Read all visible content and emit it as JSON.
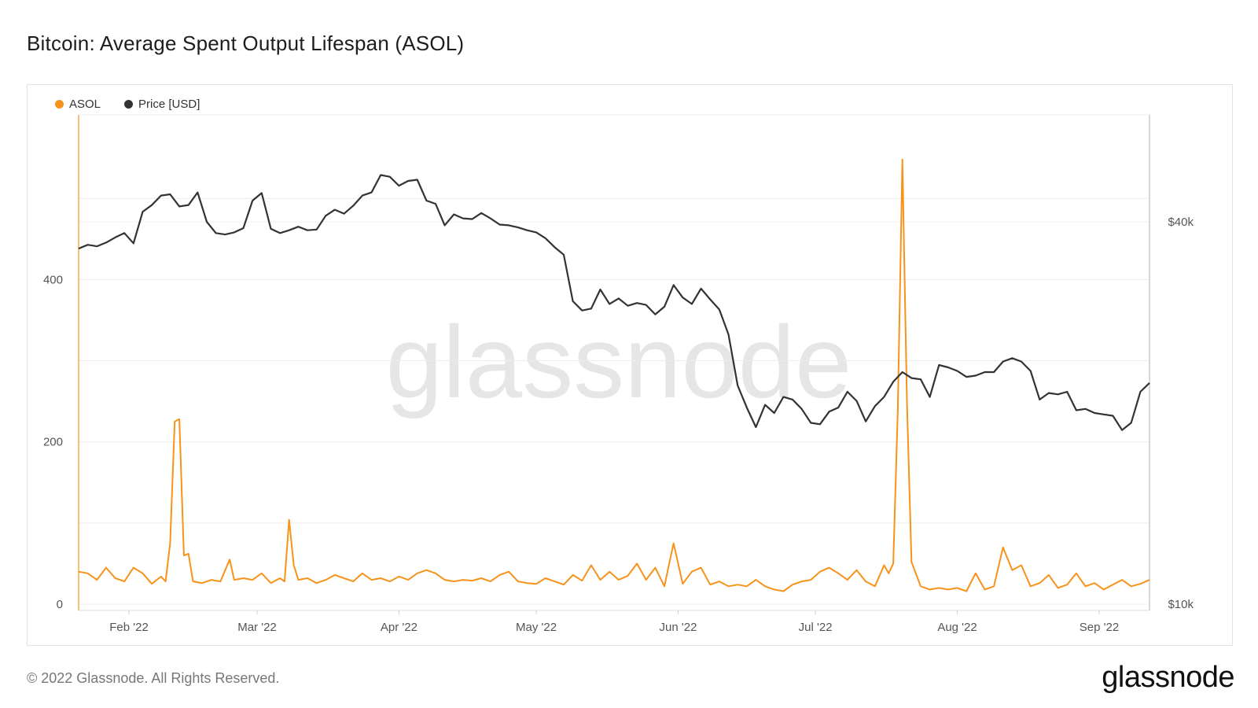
{
  "title": "Bitcoin: Average Spent Output Lifespan (ASOL)",
  "footer": "© 2022 Glassnode. All Rights Reserved.",
  "logo": "glassnode",
  "watermark": "glassnode",
  "colors": {
    "asol": "#F7931A",
    "price": "#333333",
    "grid": "#ececec",
    "axis_left": "#F7931A"
  },
  "legend": [
    {
      "label": "ASOL",
      "color": "#F7931A"
    },
    {
      "label": "Price [USD]",
      "color": "#333333"
    }
  ],
  "chart_data": {
    "type": "line",
    "title": "Bitcoin: Average Spent Output Lifespan (ASOL)",
    "x_range": [
      "2022-01-21",
      "2022-09-12"
    ],
    "x_ticks": [
      {
        "date": "2022-02-01",
        "label": "Feb '22"
      },
      {
        "date": "2022-03-01",
        "label": "Mar '22"
      },
      {
        "date": "2022-04-01",
        "label": "Apr '22"
      },
      {
        "date": "2022-05-01",
        "label": "May '22"
      },
      {
        "date": "2022-06-01",
        "label": "Jun '22"
      },
      {
        "date": "2022-07-01",
        "label": "Jul '22"
      },
      {
        "date": "2022-08-01",
        "label": "Aug '22"
      },
      {
        "date": "2022-09-01",
        "label": "Sep '22"
      }
    ],
    "y_left": {
      "range": [
        0,
        600
      ],
      "ticks": [
        {
          "value": 0,
          "label": "0"
        },
        {
          "value": 200,
          "label": "200"
        },
        {
          "value": 400,
          "label": "400"
        }
      ]
    },
    "y_right": {
      "scale": "log",
      "range": [
        9500,
        65000
      ],
      "ticks": [
        {
          "value": 10000,
          "label": "$10k"
        },
        {
          "value": 40000,
          "label": "$40k"
        }
      ]
    },
    "grid": true,
    "legend_position": "top-left",
    "series": [
      {
        "name": "ASOL",
        "axis": "left",
        "color": "#F7931A",
        "points": [
          [
            "2022-01-21",
            40
          ],
          [
            "2022-01-23",
            38
          ],
          [
            "2022-01-25",
            30
          ],
          [
            "2022-01-27",
            45
          ],
          [
            "2022-01-29",
            32
          ],
          [
            "2022-01-31",
            28
          ],
          [
            "2022-02-02",
            45
          ],
          [
            "2022-02-04",
            38
          ],
          [
            "2022-02-06",
            25
          ],
          [
            "2022-02-08",
            34
          ],
          [
            "2022-02-09",
            28
          ],
          [
            "2022-02-10",
            75
          ],
          [
            "2022-02-11",
            225
          ],
          [
            "2022-02-12",
            228
          ],
          [
            "2022-02-13",
            60
          ],
          [
            "2022-02-14",
            62
          ],
          [
            "2022-02-15",
            28
          ],
          [
            "2022-02-17",
            26
          ],
          [
            "2022-02-19",
            30
          ],
          [
            "2022-02-21",
            28
          ],
          [
            "2022-02-23",
            55
          ],
          [
            "2022-02-24",
            30
          ],
          [
            "2022-02-26",
            32
          ],
          [
            "2022-02-28",
            30
          ],
          [
            "2022-03-02",
            38
          ],
          [
            "2022-03-04",
            26
          ],
          [
            "2022-03-06",
            32
          ],
          [
            "2022-03-07",
            28
          ],
          [
            "2022-03-08",
            104
          ],
          [
            "2022-03-09",
            48
          ],
          [
            "2022-03-10",
            30
          ],
          [
            "2022-03-12",
            32
          ],
          [
            "2022-03-14",
            26
          ],
          [
            "2022-03-16",
            30
          ],
          [
            "2022-03-18",
            36
          ],
          [
            "2022-03-20",
            32
          ],
          [
            "2022-03-22",
            28
          ],
          [
            "2022-03-24",
            38
          ],
          [
            "2022-03-26",
            30
          ],
          [
            "2022-03-28",
            32
          ],
          [
            "2022-03-30",
            28
          ],
          [
            "2022-04-01",
            34
          ],
          [
            "2022-04-03",
            30
          ],
          [
            "2022-04-05",
            38
          ],
          [
            "2022-04-07",
            42
          ],
          [
            "2022-04-09",
            38
          ],
          [
            "2022-04-11",
            30
          ],
          [
            "2022-04-13",
            28
          ],
          [
            "2022-04-15",
            30
          ],
          [
            "2022-04-17",
            29
          ],
          [
            "2022-04-19",
            32
          ],
          [
            "2022-04-21",
            28
          ],
          [
            "2022-04-23",
            36
          ],
          [
            "2022-04-25",
            40
          ],
          [
            "2022-04-27",
            28
          ],
          [
            "2022-04-29",
            26
          ],
          [
            "2022-05-01",
            25
          ],
          [
            "2022-05-03",
            32
          ],
          [
            "2022-05-05",
            28
          ],
          [
            "2022-05-07",
            24
          ],
          [
            "2022-05-09",
            36
          ],
          [
            "2022-05-11",
            29
          ],
          [
            "2022-05-13",
            48
          ],
          [
            "2022-05-15",
            30
          ],
          [
            "2022-05-17",
            40
          ],
          [
            "2022-05-19",
            30
          ],
          [
            "2022-05-21",
            35
          ],
          [
            "2022-05-23",
            50
          ],
          [
            "2022-05-25",
            30
          ],
          [
            "2022-05-27",
            45
          ],
          [
            "2022-05-29",
            22
          ],
          [
            "2022-05-31",
            75
          ],
          [
            "2022-06-02",
            25
          ],
          [
            "2022-06-04",
            40
          ],
          [
            "2022-06-06",
            45
          ],
          [
            "2022-06-08",
            24
          ],
          [
            "2022-06-10",
            28
          ],
          [
            "2022-06-12",
            22
          ],
          [
            "2022-06-14",
            24
          ],
          [
            "2022-06-16",
            22
          ],
          [
            "2022-06-18",
            30
          ],
          [
            "2022-06-20",
            22
          ],
          [
            "2022-06-22",
            18
          ],
          [
            "2022-06-24",
            16
          ],
          [
            "2022-06-26",
            24
          ],
          [
            "2022-06-28",
            28
          ],
          [
            "2022-06-30",
            30
          ],
          [
            "2022-07-02",
            40
          ],
          [
            "2022-07-04",
            45
          ],
          [
            "2022-07-06",
            38
          ],
          [
            "2022-07-08",
            30
          ],
          [
            "2022-07-10",
            42
          ],
          [
            "2022-07-12",
            28
          ],
          [
            "2022-07-14",
            22
          ],
          [
            "2022-07-16",
            48
          ],
          [
            "2022-07-17",
            38
          ],
          [
            "2022-07-18",
            50
          ],
          [
            "2022-07-19",
            240
          ],
          [
            "2022-07-20",
            548
          ],
          [
            "2022-07-21",
            250
          ],
          [
            "2022-07-22",
            52
          ],
          [
            "2022-07-24",
            22
          ],
          [
            "2022-07-26",
            18
          ],
          [
            "2022-07-28",
            20
          ],
          [
            "2022-07-30",
            18
          ],
          [
            "2022-08-01",
            20
          ],
          [
            "2022-08-03",
            16
          ],
          [
            "2022-08-05",
            38
          ],
          [
            "2022-08-07",
            18
          ],
          [
            "2022-08-09",
            22
          ],
          [
            "2022-08-11",
            70
          ],
          [
            "2022-08-13",
            42
          ],
          [
            "2022-08-15",
            48
          ],
          [
            "2022-08-17",
            22
          ],
          [
            "2022-08-19",
            26
          ],
          [
            "2022-08-21",
            36
          ],
          [
            "2022-08-23",
            20
          ],
          [
            "2022-08-25",
            24
          ],
          [
            "2022-08-27",
            38
          ],
          [
            "2022-08-29",
            22
          ],
          [
            "2022-08-31",
            26
          ],
          [
            "2022-09-02",
            18
          ],
          [
            "2022-09-04",
            24
          ],
          [
            "2022-09-06",
            30
          ],
          [
            "2022-09-08",
            22
          ],
          [
            "2022-09-10",
            25
          ],
          [
            "2022-09-12",
            30
          ]
        ]
      },
      {
        "name": "Price [USD]",
        "axis": "right",
        "color": "#333333",
        "points": [
          [
            "2022-01-21",
            36300
          ],
          [
            "2022-01-23",
            36800
          ],
          [
            "2022-01-25",
            36600
          ],
          [
            "2022-01-27",
            37100
          ],
          [
            "2022-01-29",
            37800
          ],
          [
            "2022-01-31",
            38400
          ],
          [
            "2022-02-02",
            37000
          ],
          [
            "2022-02-04",
            41500
          ],
          [
            "2022-02-06",
            42500
          ],
          [
            "2022-02-08",
            44000
          ],
          [
            "2022-02-10",
            44200
          ],
          [
            "2022-02-12",
            42300
          ],
          [
            "2022-02-14",
            42500
          ],
          [
            "2022-02-16",
            44500
          ],
          [
            "2022-02-18",
            40000
          ],
          [
            "2022-02-20",
            38400
          ],
          [
            "2022-02-22",
            38200
          ],
          [
            "2022-02-24",
            38500
          ],
          [
            "2022-02-26",
            39100
          ],
          [
            "2022-02-28",
            43200
          ],
          [
            "2022-03-02",
            44400
          ],
          [
            "2022-03-04",
            39000
          ],
          [
            "2022-03-06",
            38400
          ],
          [
            "2022-03-08",
            38800
          ],
          [
            "2022-03-10",
            39300
          ],
          [
            "2022-03-12",
            38800
          ],
          [
            "2022-03-14",
            38900
          ],
          [
            "2022-03-16",
            40900
          ],
          [
            "2022-03-18",
            41800
          ],
          [
            "2022-03-20",
            41200
          ],
          [
            "2022-03-22",
            42400
          ],
          [
            "2022-03-24",
            44000
          ],
          [
            "2022-03-26",
            44500
          ],
          [
            "2022-03-28",
            47400
          ],
          [
            "2022-03-30",
            47100
          ],
          [
            "2022-04-01",
            45600
          ],
          [
            "2022-04-03",
            46400
          ],
          [
            "2022-04-05",
            46600
          ],
          [
            "2022-04-07",
            43200
          ],
          [
            "2022-04-09",
            42700
          ],
          [
            "2022-04-11",
            39500
          ],
          [
            "2022-04-13",
            41100
          ],
          [
            "2022-04-15",
            40500
          ],
          [
            "2022-04-17",
            40400
          ],
          [
            "2022-04-19",
            41300
          ],
          [
            "2022-04-21",
            40500
          ],
          [
            "2022-04-23",
            39600
          ],
          [
            "2022-04-25",
            39500
          ],
          [
            "2022-04-27",
            39200
          ],
          [
            "2022-04-29",
            38800
          ],
          [
            "2022-05-01",
            38500
          ],
          [
            "2022-05-03",
            37700
          ],
          [
            "2022-05-05",
            36500
          ],
          [
            "2022-05-07",
            35500
          ],
          [
            "2022-05-09",
            30000
          ],
          [
            "2022-05-11",
            29000
          ],
          [
            "2022-05-13",
            29200
          ],
          [
            "2022-05-15",
            31300
          ],
          [
            "2022-05-17",
            29700
          ],
          [
            "2022-05-19",
            30300
          ],
          [
            "2022-05-21",
            29500
          ],
          [
            "2022-05-23",
            29800
          ],
          [
            "2022-05-25",
            29600
          ],
          [
            "2022-05-27",
            28600
          ],
          [
            "2022-05-29",
            29400
          ],
          [
            "2022-05-31",
            31800
          ],
          [
            "2022-06-02",
            30400
          ],
          [
            "2022-06-04",
            29700
          ],
          [
            "2022-06-06",
            31400
          ],
          [
            "2022-06-08",
            30200
          ],
          [
            "2022-06-10",
            29100
          ],
          [
            "2022-06-12",
            26600
          ],
          [
            "2022-06-14",
            22100
          ],
          [
            "2022-06-16",
            20400
          ],
          [
            "2022-06-18",
            19000
          ],
          [
            "2022-06-20",
            20600
          ],
          [
            "2022-06-22",
            20000
          ],
          [
            "2022-06-24",
            21200
          ],
          [
            "2022-06-26",
            21000
          ],
          [
            "2022-06-28",
            20300
          ],
          [
            "2022-06-30",
            19300
          ],
          [
            "2022-07-02",
            19200
          ],
          [
            "2022-07-04",
            20100
          ],
          [
            "2022-07-06",
            20400
          ],
          [
            "2022-07-08",
            21600
          ],
          [
            "2022-07-10",
            20900
          ],
          [
            "2022-07-12",
            19400
          ],
          [
            "2022-07-14",
            20500
          ],
          [
            "2022-07-16",
            21200
          ],
          [
            "2022-07-18",
            22400
          ],
          [
            "2022-07-20",
            23200
          ],
          [
            "2022-07-22",
            22700
          ],
          [
            "2022-07-24",
            22600
          ],
          [
            "2022-07-26",
            21200
          ],
          [
            "2022-07-28",
            23800
          ],
          [
            "2022-07-30",
            23600
          ],
          [
            "2022-08-01",
            23300
          ],
          [
            "2022-08-03",
            22800
          ],
          [
            "2022-08-05",
            22900
          ],
          [
            "2022-08-07",
            23200
          ],
          [
            "2022-08-09",
            23200
          ],
          [
            "2022-08-11",
            24100
          ],
          [
            "2022-08-13",
            24400
          ],
          [
            "2022-08-15",
            24100
          ],
          [
            "2022-08-17",
            23300
          ],
          [
            "2022-08-19",
            21000
          ],
          [
            "2022-08-21",
            21500
          ],
          [
            "2022-08-23",
            21400
          ],
          [
            "2022-08-25",
            21600
          ],
          [
            "2022-08-27",
            20200
          ],
          [
            "2022-08-29",
            20300
          ],
          [
            "2022-08-31",
            20000
          ],
          [
            "2022-09-02",
            19900
          ],
          [
            "2022-09-04",
            19800
          ],
          [
            "2022-09-06",
            18800
          ],
          [
            "2022-09-08",
            19300
          ],
          [
            "2022-09-10",
            21600
          ],
          [
            "2022-09-12",
            22300
          ]
        ]
      }
    ]
  }
}
